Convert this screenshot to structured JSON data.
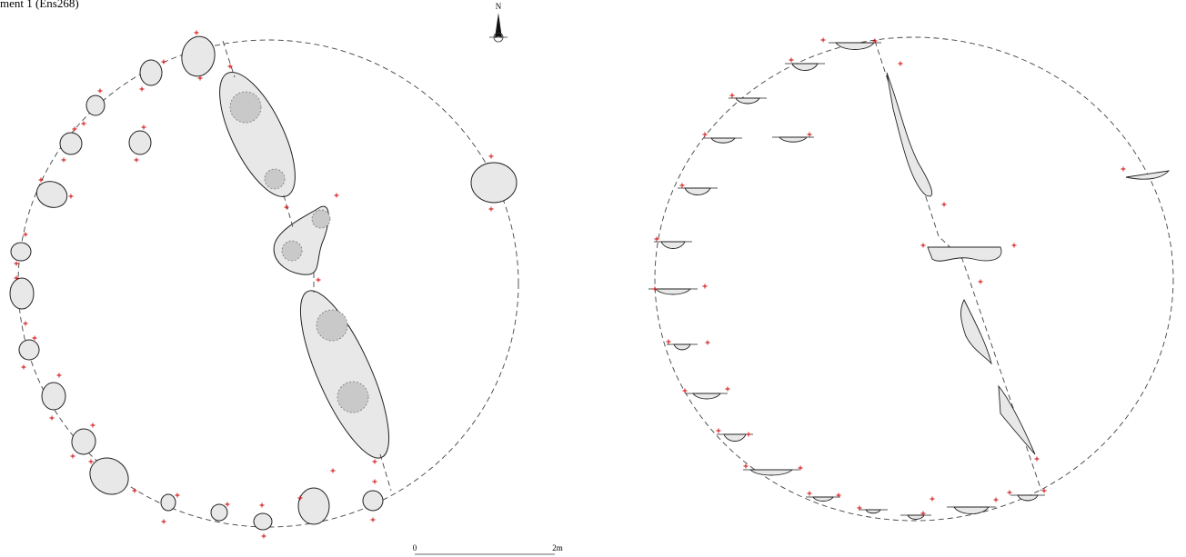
{
  "header": {
    "title": "ment 1 (Ens268)"
  },
  "north_arrow": {
    "label": "N"
  },
  "scale_bar": {
    "start_label": "0",
    "end_label": "2m"
  }
}
